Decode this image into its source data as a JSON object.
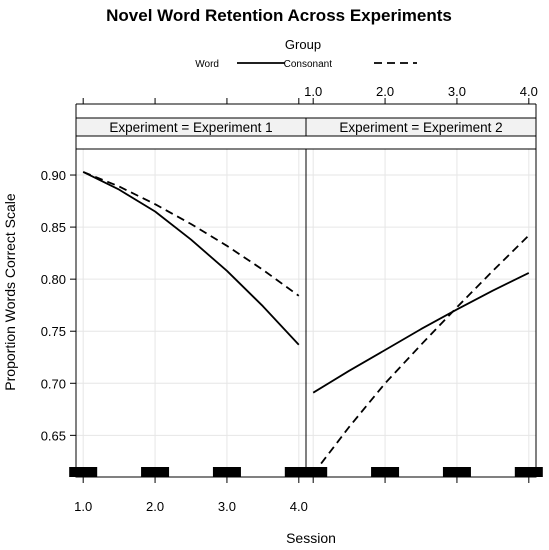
{
  "chart_data": {
    "type": "line",
    "title": "Novel Word Retention Across Experiments",
    "xlabel": "Session",
    "ylabel": "Proportion Words Correct Scale",
    "ylim": [
      0.61,
      0.925
    ],
    "xlim": [
      0.9,
      4.1
    ],
    "y_ticks": [
      "0.65",
      "0.70",
      "0.75",
      "0.80",
      "0.85",
      "0.90"
    ],
    "x_ticks": [
      "1.0",
      "2.0",
      "3.0",
      "4.0"
    ],
    "grid": true,
    "legend": {
      "title": "Group",
      "placement": "top",
      "entries": [
        {
          "label": "Word",
          "linestyle": "solid"
        },
        {
          "label": "Consonant",
          "linestyle": "dashed"
        }
      ]
    },
    "panels": [
      {
        "strip": "Experiment = Experiment 1",
        "series": [
          {
            "name": "Word",
            "linestyle": "solid",
            "x": [
              1.0,
              1.5,
              2.0,
              2.5,
              3.0,
              3.5,
              4.0
            ],
            "y": [
              0.903,
              0.886,
              0.865,
              0.838,
              0.808,
              0.774,
              0.737
            ]
          },
          {
            "name": "Consonant",
            "linestyle": "dashed",
            "x": [
              1.0,
              1.5,
              2.0,
              2.5,
              3.0,
              3.5,
              4.0
            ],
            "y": [
              0.903,
              0.889,
              0.872,
              0.853,
              0.832,
              0.809,
              0.784
            ]
          }
        ]
      },
      {
        "strip": "Experiment = Experiment 2",
        "series": [
          {
            "name": "Word",
            "linestyle": "solid",
            "x": [
              1.0,
              1.5,
              2.0,
              2.5,
              3.0,
              3.5,
              4.0
            ],
            "y": [
              0.691,
              0.712,
              0.732,
              0.752,
              0.771,
              0.789,
              0.806
            ]
          },
          {
            "name": "Consonant",
            "linestyle": "dashed",
            "x": [
              1.0,
              1.5,
              2.0,
              2.5,
              3.0,
              3.5,
              4.0
            ],
            "y": [
              0.613,
              0.658,
              0.7,
              0.737,
              0.773,
              0.808,
              0.842
            ]
          }
        ]
      }
    ]
  }
}
